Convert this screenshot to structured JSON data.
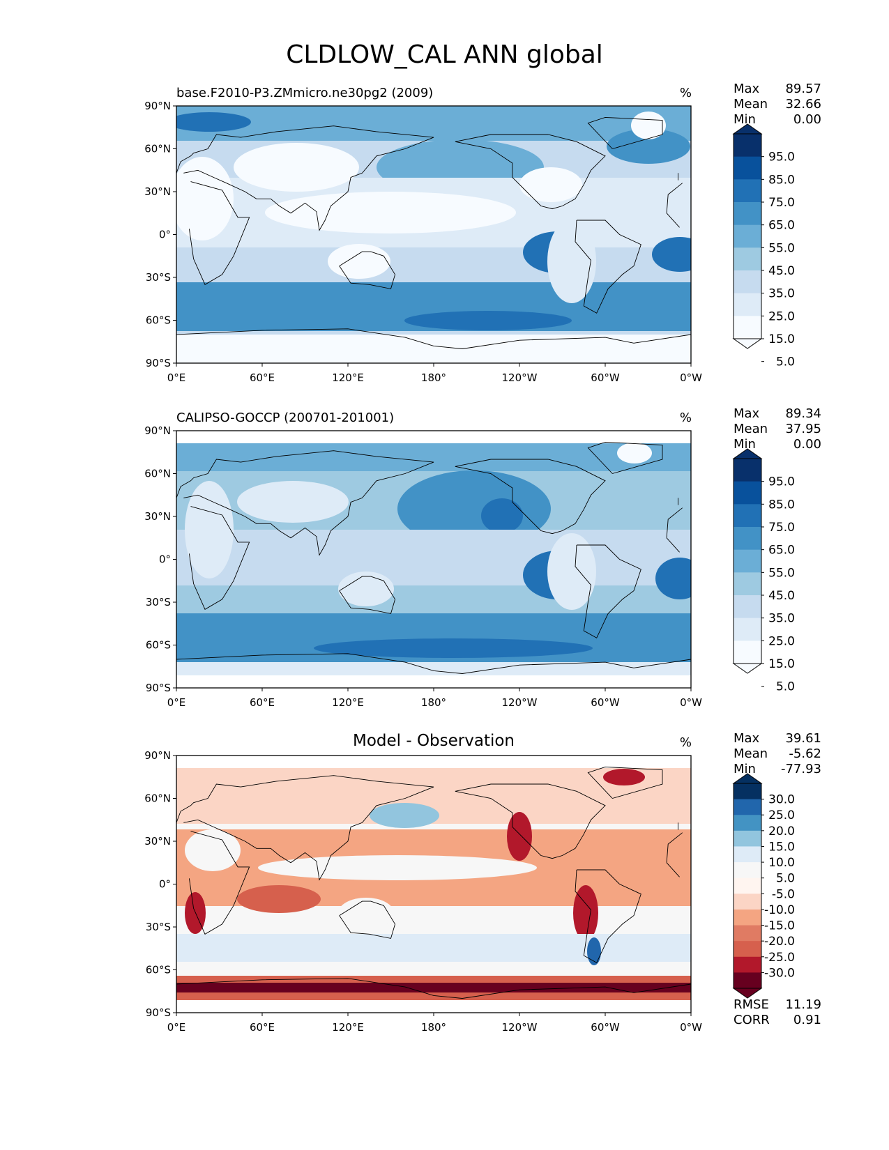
{
  "title": "CLDLOW_CAL ANN global",
  "x_ticks": [
    "0°E",
    "60°E",
    "120°E",
    "180°",
    "120°W",
    "60°W",
    "0°W"
  ],
  "y_ticks": [
    "90°N",
    "60°N",
    "30°N",
    "0°",
    "30°S",
    "60°S",
    "90°S"
  ],
  "panels": [
    {
      "title": "base.F2010-P3.ZMmicro.ne30pg2 (2009)",
      "unit": "%",
      "stats": {
        "max_label": "Max",
        "max": "89.57",
        "mean_label": "Mean",
        "mean": "32.66",
        "min_label": "Min",
        "min": "0.00"
      },
      "colorbar": {
        "labels": [
          "95.0",
          "85.0",
          "75.0",
          "65.0",
          "55.0",
          "45.0",
          "35.0",
          "25.0",
          "15.0",
          "5.0"
        ]
      }
    },
    {
      "title": "CALIPSO-GOCCP (200701-201001)",
      "unit": "%",
      "stats": {
        "max_label": "Max",
        "max": "89.34",
        "mean_label": "Mean",
        "mean": "37.95",
        "min_label": "Min",
        "min": "0.00"
      },
      "colorbar": {
        "labels": [
          "95.0",
          "85.0",
          "75.0",
          "65.0",
          "55.0",
          "45.0",
          "35.0",
          "25.0",
          "15.0",
          "5.0"
        ]
      }
    },
    {
      "title": "Model - Observation",
      "unit": "%",
      "stats": {
        "max_label": "Max",
        "max": "39.61",
        "mean_label": "Mean",
        "mean": "-5.62",
        "min_label": "Min",
        "min": "-77.93"
      },
      "colorbar": {
        "labels": [
          "30.0",
          "25.0",
          "20.0",
          "15.0",
          "10.0",
          "5.0",
          "-5.0",
          "-10.0",
          "-15.0",
          "-20.0",
          "-25.0",
          "-30.0"
        ]
      },
      "metrics": {
        "rmse_label": "RMSE",
        "rmse": "11.19",
        "corr_label": "CORR",
        "corr": "0.91"
      }
    }
  ],
  "chart_data": [
    {
      "type": "heatmap",
      "title": "base.F2010-P3.ZMmicro.ne30pg2 (2009)",
      "xlabel": "",
      "ylabel": "",
      "xlim": [
        0,
        360
      ],
      "ylim": [
        -90,
        90
      ],
      "colormap": "Blues",
      "levels": [
        0,
        5,
        15,
        25,
        35,
        45,
        55,
        65,
        75,
        85,
        95,
        100
      ],
      "units": "%"
    },
    {
      "type": "heatmap",
      "title": "CALIPSO-GOCCP (200701-201001)",
      "xlabel": "",
      "ylabel": "",
      "xlim": [
        0,
        360
      ],
      "ylim": [
        -90,
        90
      ],
      "colormap": "Blues",
      "levels": [
        0,
        5,
        15,
        25,
        35,
        45,
        55,
        65,
        75,
        85,
        95,
        100
      ],
      "units": "%"
    },
    {
      "type": "heatmap",
      "title": "Model - Observation",
      "xlabel": "",
      "ylabel": "",
      "xlim": [
        0,
        360
      ],
      "ylim": [
        -90,
        90
      ],
      "colormap": "RdBu_r",
      "levels": [
        -35,
        -30,
        -25,
        -20,
        -15,
        -10,
        -5,
        5,
        10,
        15,
        20,
        25,
        30,
        35
      ],
      "units": "%"
    }
  ],
  "colors": {
    "blues": [
      "#f7fbff",
      "#deebf7",
      "#c6dbef",
      "#9ecae1",
      "#6baed6",
      "#4292c6",
      "#2171b5",
      "#08519c",
      "#08306b"
    ],
    "diff_neg": [
      "#fff5f0",
      "#fbd5c5",
      "#f4a582",
      "#e07b63",
      "#d6604d",
      "#b2182b",
      "#67001f"
    ],
    "diff_pos": [
      "#f7f7f7",
      "#deebf7",
      "#92c5de",
      "#4393c3",
      "#2166ac",
      "#053061"
    ]
  }
}
